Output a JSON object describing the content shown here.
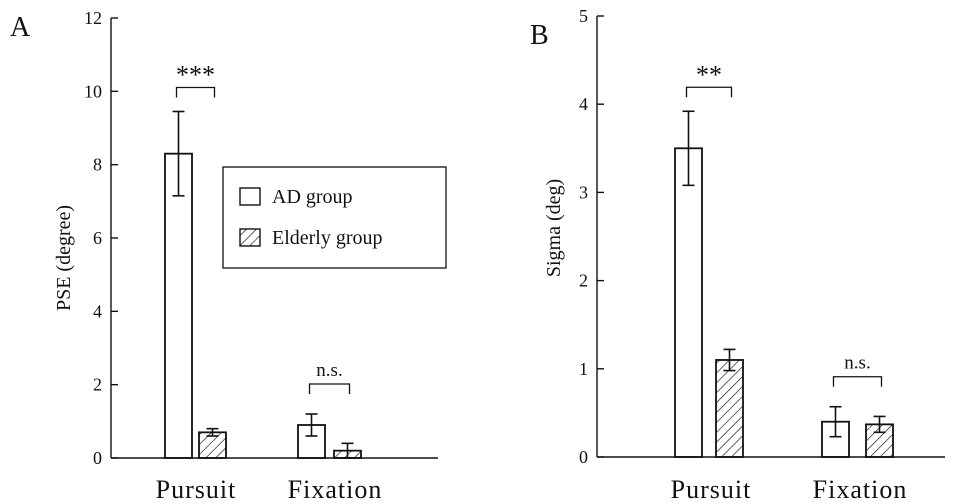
{
  "colors": {
    "ink": "#111111",
    "background": "#ffffff"
  },
  "legend": {
    "placement": "inside panel A, upper right",
    "entries": [
      {
        "label": "AD group",
        "fill": "none"
      },
      {
        "label": "Elderly group",
        "fill": "hatch"
      }
    ]
  },
  "chart_data": [
    {
      "type": "bar",
      "panel_label": "A",
      "ylabel": "PSE (degree)",
      "xlabel": "",
      "ylim": [
        0,
        12
      ],
      "yticks": [
        0,
        2,
        4,
        6,
        8,
        10,
        12
      ],
      "categories": [
        "Pursuit",
        "Fixation"
      ],
      "series": [
        {
          "name": "AD group",
          "values": [
            8.3,
            0.9
          ],
          "errors": [
            1.15,
            0.3
          ]
        },
        {
          "name": "Elderly group",
          "values": [
            0.7,
            0.2
          ],
          "errors": [
            0.1,
            0.2
          ]
        }
      ],
      "significance": [
        "***",
        "n.s."
      ],
      "grid": false
    },
    {
      "type": "bar",
      "panel_label": "B",
      "ylabel": "Sigma (deg)",
      "xlabel": "",
      "ylim": [
        0,
        5
      ],
      "yticks": [
        0,
        1,
        2,
        3,
        4,
        5
      ],
      "categories": [
        "Pursuit",
        "Fixation"
      ],
      "series": [
        {
          "name": "AD group",
          "values": [
            3.5,
            0.4
          ],
          "errors": [
            0.42,
            0.17
          ]
        },
        {
          "name": "Elderly group",
          "values": [
            1.1,
            0.37
          ],
          "errors": [
            0.12,
            0.09
          ]
        }
      ],
      "significance": [
        "**",
        "n.s."
      ],
      "grid": false
    }
  ]
}
